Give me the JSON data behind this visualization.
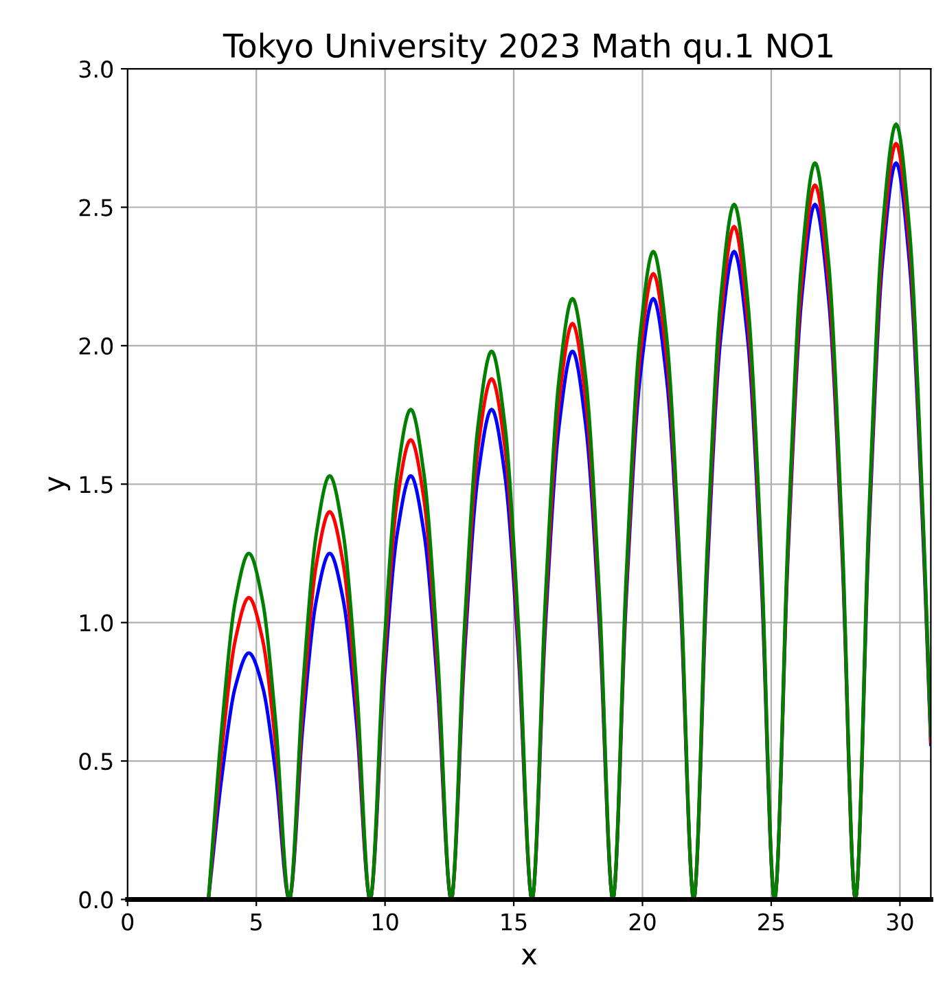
{
  "chart_data": {
    "type": "line",
    "title": "Tokyo University 2023 Math qu.1 NO1",
    "xlabel": "x",
    "ylabel": "y",
    "x": [
      3.14,
      3.67,
      4.19,
      4.71,
      5.24,
      5.76,
      6.28,
      6.81,
      7.33,
      7.85,
      8.38,
      8.9,
      9.42,
      9.95,
      10.47,
      11.0,
      11.52,
      12.04,
      12.57,
      13.09,
      13.61,
      14.14,
      14.66,
      15.18,
      15.71,
      16.23,
      16.76,
      17.28,
      17.8,
      18.33,
      18.85,
      19.37,
      19.9,
      20.42,
      20.94,
      21.47,
      21.99,
      22.51,
      23.04,
      23.56,
      24.08,
      24.61,
      25.13,
      25.66,
      26.18,
      26.7,
      27.23,
      27.75,
      28.27,
      28.8,
      29.32,
      29.85,
      30.37,
      30.89,
      31.2
    ],
    "series": [
      {
        "color": "#0000ff",
        "values": [
          0,
          0.45,
          0.77,
          0.89,
          0.77,
          0.45,
          0,
          0.63,
          1.08,
          1.25,
          1.08,
          0.63,
          0,
          0.77,
          1.32,
          1.53,
          1.32,
          0.77,
          0,
          0.89,
          1.53,
          1.77,
          1.53,
          0.89,
          0,
          0.99,
          1.71,
          1.98,
          1.71,
          0.99,
          0,
          1.09,
          1.88,
          2.17,
          1.88,
          1.09,
          0,
          1.17,
          2.03,
          2.34,
          2.03,
          1.17,
          0,
          1.26,
          2.17,
          2.51,
          2.17,
          1.26,
          0,
          1.33,
          2.3,
          2.66,
          2.3,
          1.33,
          0.56
        ]
      },
      {
        "color": "#ff0000",
        "values": [
          0,
          0.55,
          0.94,
          1.09,
          0.94,
          0.55,
          0,
          0.7,
          1.21,
          1.4,
          1.21,
          0.7,
          0,
          0.83,
          1.44,
          1.66,
          1.44,
          0.83,
          0,
          0.94,
          1.63,
          1.88,
          1.63,
          0.94,
          0,
          1.04,
          1.8,
          2.08,
          1.8,
          1.04,
          0,
          1.13,
          1.96,
          2.26,
          1.96,
          1.13,
          0,
          1.22,
          2.1,
          2.43,
          2.1,
          1.22,
          0,
          1.29,
          2.23,
          2.58,
          2.23,
          1.29,
          0,
          1.37,
          2.36,
          2.73,
          2.36,
          1.37,
          0.57
        ]
      },
      {
        "color": "#008000",
        "values": [
          0,
          0.63,
          1.08,
          1.25,
          1.08,
          0.63,
          0,
          0.77,
          1.32,
          1.53,
          1.32,
          0.77,
          0,
          0.89,
          1.53,
          1.77,
          1.53,
          0.89,
          0,
          0.99,
          1.71,
          1.98,
          1.71,
          0.99,
          0,
          1.09,
          1.88,
          2.17,
          1.88,
          1.09,
          0,
          1.17,
          2.03,
          2.34,
          2.03,
          1.17,
          0,
          1.26,
          2.17,
          2.51,
          2.17,
          1.26,
          0,
          1.33,
          2.3,
          2.66,
          2.3,
          1.33,
          0,
          1.4,
          2.42,
          2.8,
          2.42,
          1.4,
          0.59
        ]
      }
    ],
    "xlim": [
      0,
      31.2
    ],
    "xticks": [
      0,
      5,
      10,
      15,
      20,
      25,
      30
    ],
    "ylim": [
      0,
      3
    ],
    "yticks": [
      {
        "value": 0,
        "label": "0.0"
      },
      {
        "value": 0.5,
        "label": "0.5"
      },
      {
        "value": 1,
        "label": "1.0"
      },
      {
        "value": 1.5,
        "label": "1.5"
      },
      {
        "value": 2,
        "label": "2.0"
      },
      {
        "value": 2.5,
        "label": "2.5"
      },
      {
        "value": 3,
        "label": "3.0"
      }
    ],
    "grid": true,
    "marker": "none",
    "line_style": "solid",
    "legend": false
  }
}
